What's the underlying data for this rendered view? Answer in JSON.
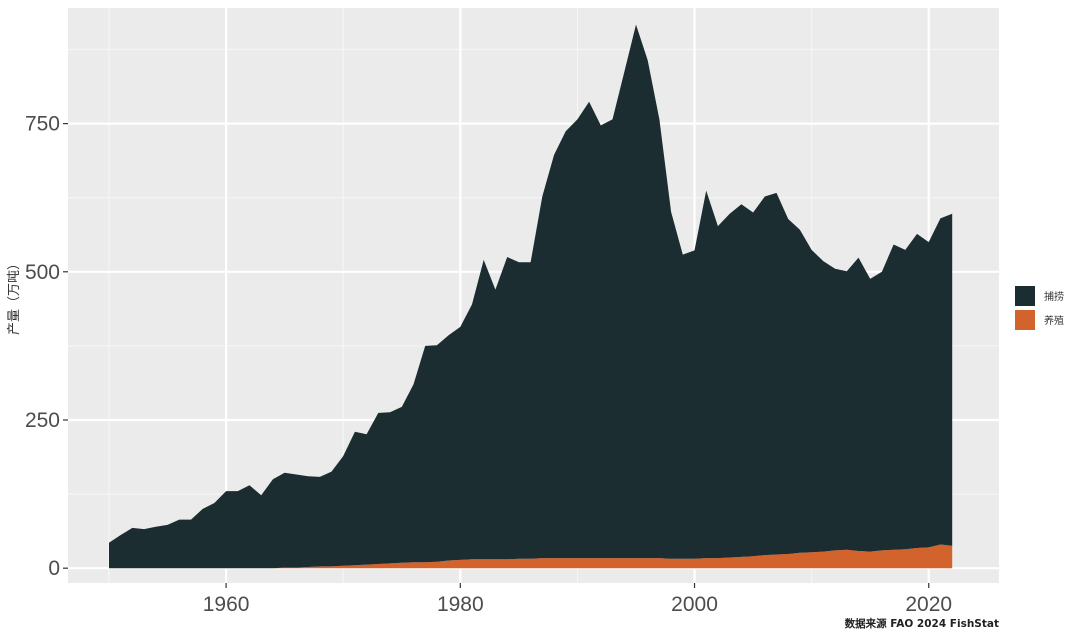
{
  "chart_data": {
    "type": "area",
    "stacked": true,
    "xlabel": "",
    "ylabel": "产量（万吨）",
    "x_ticks": [
      1960,
      1980,
      2000,
      2020
    ],
    "y_ticks": [
      0,
      250,
      500,
      750
    ],
    "x_tick_labels": [
      "1960",
      "1980",
      "2000",
      "2020"
    ],
    "y_tick_labels": [
      "0",
      "250",
      "500",
      "750"
    ],
    "xlim": [
      1946.5,
      2026
    ],
    "ylim": [
      -25,
      945
    ],
    "grid": true,
    "legend_position": "right",
    "caption": "数据来源 FAO 2024 FishStat",
    "x": [
      1950,
      1951,
      1952,
      1953,
      1954,
      1955,
      1956,
      1957,
      1958,
      1959,
      1960,
      1961,
      1962,
      1963,
      1964,
      1965,
      1966,
      1967,
      1968,
      1969,
      1970,
      1971,
      1972,
      1973,
      1974,
      1975,
      1976,
      1977,
      1978,
      1979,
      1980,
      1981,
      1982,
      1983,
      1984,
      1985,
      1986,
      1987,
      1988,
      1989,
      1990,
      1991,
      1992,
      1993,
      1994,
      1995,
      1996,
      1997,
      1998,
      1999,
      2000,
      2001,
      2002,
      2003,
      2004,
      2005,
      2006,
      2007,
      2008,
      2009,
      2010,
      2011,
      2012,
      2013,
      2014,
      2015,
      2016,
      2017,
      2018,
      2019,
      2020,
      2021,
      2022
    ],
    "series": [
      {
        "name": "捕捞",
        "color": "#1b2d31",
        "values": [
          43,
          56,
          68,
          66,
          70,
          73,
          82,
          82,
          100,
          110,
          130,
          130,
          140,
          123,
          150,
          160,
          157,
          153,
          151,
          160,
          185,
          225,
          220,
          255,
          255,
          263,
          300,
          365,
          365,
          380,
          393,
          430,
          505,
          455,
          510,
          500,
          500,
          610,
          680,
          720,
          740,
          770,
          730,
          740,
          820,
          900,
          840,
          740,
          585,
          513,
          520,
          620,
          560,
          580,
          595,
          580,
          605,
          610,
          565,
          545,
          510,
          490,
          475,
          470,
          495,
          460,
          470,
          515,
          505,
          530,
          515,
          550,
          560
        ]
      },
      {
        "name": "养殖",
        "color": "#d2632c",
        "values": [
          0,
          0,
          0,
          0,
          0,
          0,
          0,
          0,
          0,
          0,
          0,
          0,
          0,
          0,
          0,
          1,
          1,
          2,
          3,
          3,
          4,
          5,
          6,
          7,
          8,
          9,
          10,
          10,
          11,
          13,
          14,
          15,
          15,
          15,
          15,
          16,
          16,
          17,
          17,
          17,
          17,
          17,
          17,
          17,
          17,
          17,
          17,
          17,
          16,
          16,
          16,
          17,
          17,
          18,
          19,
          20,
          22,
          23,
          24,
          26,
          27,
          28,
          30,
          31,
          29,
          28,
          30,
          31,
          32,
          34,
          35,
          40,
          38
        ]
      }
    ]
  },
  "colors": {
    "panel_bg": "#ebebeb",
    "grid_major": "#ffffff",
    "grid_minor": "#f5f5f5"
  }
}
